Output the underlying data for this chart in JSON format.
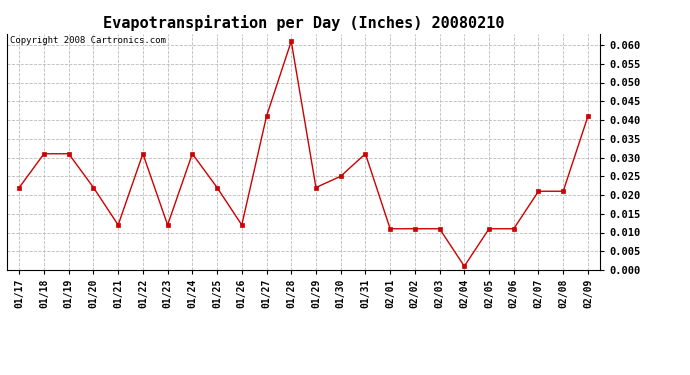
{
  "title": "Evapotranspiration per Day (Inches) 20080210",
  "copyright_text": "Copyright 2008 Cartronics.com",
  "x_labels": [
    "01/17",
    "01/18",
    "01/19",
    "01/20",
    "01/21",
    "01/22",
    "01/23",
    "01/24",
    "01/25",
    "01/26",
    "01/27",
    "01/28",
    "01/29",
    "01/30",
    "01/31",
    "02/01",
    "02/02",
    "02/03",
    "02/04",
    "02/05",
    "02/06",
    "02/07",
    "02/08",
    "02/09"
  ],
  "y_values": [
    0.022,
    0.031,
    0.031,
    0.022,
    0.012,
    0.031,
    0.012,
    0.031,
    0.022,
    0.012,
    0.041,
    0.061,
    0.022,
    0.025,
    0.031,
    0.011,
    0.011,
    0.011,
    0.001,
    0.011,
    0.011,
    0.021,
    0.021,
    0.041
  ],
  "line_color": "#cc0000",
  "marker": "s",
  "marker_size": 3,
  "ylim": [
    0.0,
    0.063
  ],
  "yticks": [
    0.0,
    0.005,
    0.01,
    0.015,
    0.02,
    0.025,
    0.03,
    0.035,
    0.04,
    0.045,
    0.05,
    0.055,
    0.06
  ],
  "background_color": "#ffffff",
  "grid_color": "#bbbbbb",
  "title_fontsize": 11,
  "copyright_fontsize": 6.5,
  "tick_fontsize": 7,
  "ytick_fontsize": 7.5
}
